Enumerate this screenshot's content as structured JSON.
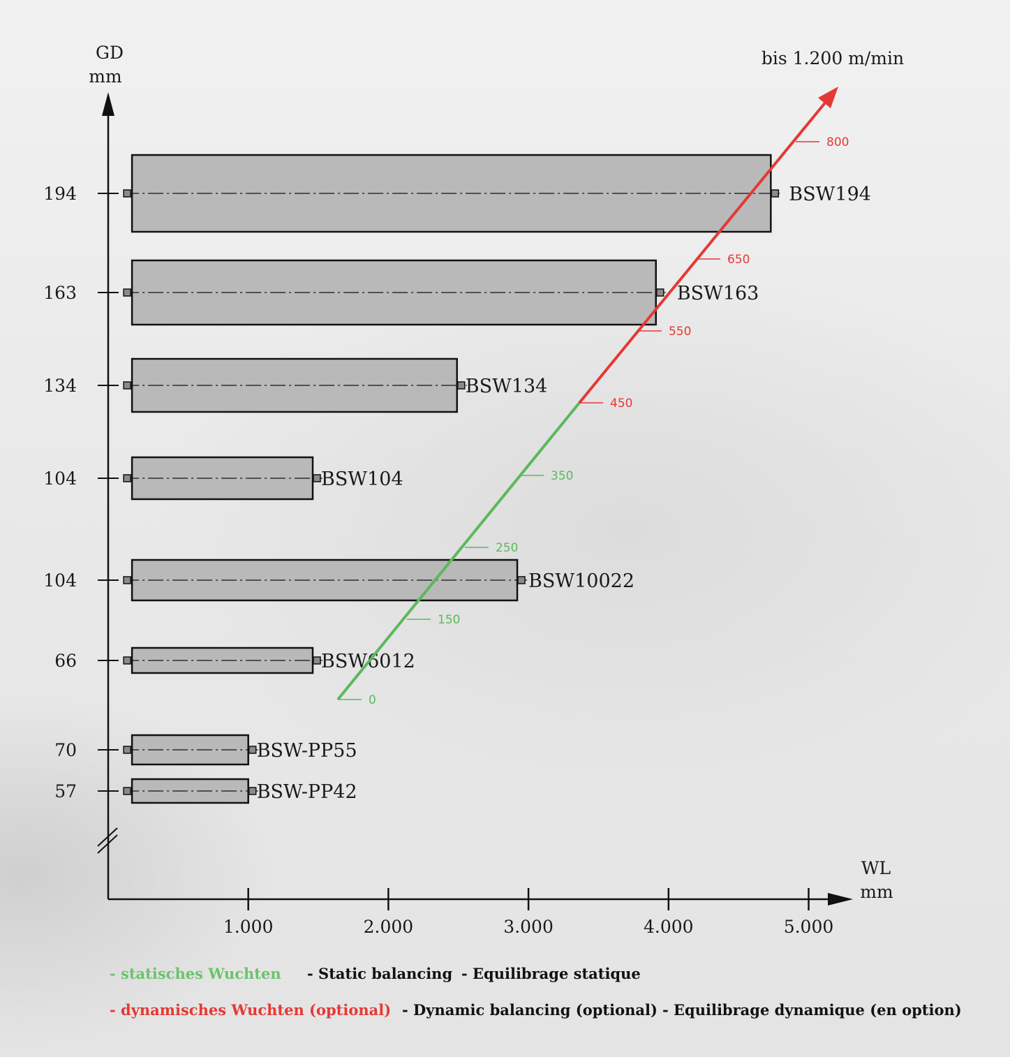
{
  "chart_data": {
    "type": "bar",
    "y_axis": {
      "title_line1": "GD",
      "title_line2": "mm"
    },
    "x_axis": {
      "title_line1": "WL",
      "title_line2": "mm",
      "ticks": [
        "1.000",
        "2.000",
        "3.000",
        "4.000",
        "5.000"
      ],
      "tick_values": [
        1000,
        2000,
        3000,
        4000,
        5000
      ],
      "xlim": [
        0,
        5300
      ]
    },
    "bars": [
      {
        "name": "BSW194",
        "gd_label": "194",
        "wl_start": 170,
        "wl_end": 4730
      },
      {
        "name": "BSW163",
        "gd_label": "163",
        "wl_start": 170,
        "wl_end": 3910
      },
      {
        "name": "BSW134",
        "gd_label": "134",
        "wl_start": 170,
        "wl_end": 2490
      },
      {
        "name": "BSW104",
        "gd_label": "104",
        "wl_start": 170,
        "wl_end": 1460
      },
      {
        "name": "BSW10022",
        "gd_label": "104",
        "wl_start": 170,
        "wl_end": 2920
      },
      {
        "name": "BSW6012",
        "gd_label": "66",
        "wl_start": 170,
        "wl_end": 1460
      },
      {
        "name": "BSW-PP55",
        "gd_label": "70",
        "wl_start": 170,
        "wl_end": 1000
      },
      {
        "name": "BSW-PP42",
        "gd_label": "57",
        "wl_start": 170,
        "wl_end": 1000
      }
    ],
    "speed_line": {
      "static_marks": [
        "0",
        "150",
        "250",
        "350"
      ],
      "dynamic_marks": [
        "450",
        "550",
        "650",
        "800"
      ],
      "max_label": "bis 1.200 m/min",
      "static_color": "#5cb85c",
      "dynamic_color": "#e53935"
    }
  },
  "legend": {
    "static_de": "- statisches Wuchten",
    "static_en": "- Static balancing",
    "static_fr": "- Equilibrage statique",
    "dynamic_de": "- dynamisches Wuchten (optional)",
    "dynamic_en": "- Dynamic balancing (optional)",
    "dynamic_fr": "- Equilibrage dynamique (en option)"
  }
}
